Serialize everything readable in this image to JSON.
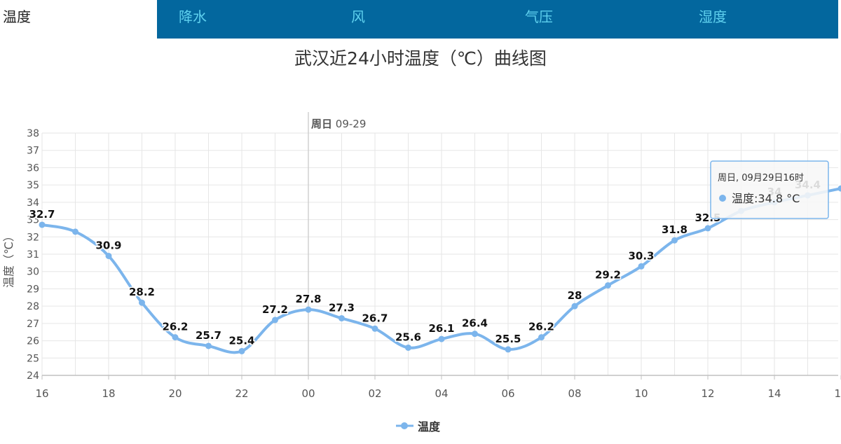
{
  "tabs": [
    {
      "label": "温度",
      "active": true
    },
    {
      "label": "降水",
      "active": false
    },
    {
      "label": "风",
      "active": false
    },
    {
      "label": "气压",
      "active": false
    },
    {
      "label": "湿度",
      "active": false
    }
  ],
  "colors": {
    "tab_bg": "#03679e",
    "tab_text": "#5fd0ee",
    "series": "#7cb5ec",
    "grid": "#e6e6e6"
  },
  "chart_data": {
    "type": "line",
    "title": "武汉近24小时温度（℃）曲线图",
    "ylabel": "温度（℃）",
    "ylim": [
      24,
      38
    ],
    "yticks": [
      "24",
      "25",
      "26",
      "27",
      "28",
      "29",
      "30",
      "31",
      "32",
      "33",
      "34",
      "35",
      "36",
      "37",
      "38"
    ],
    "x": [
      "16",
      "17",
      "18",
      "19",
      "20",
      "21",
      "22",
      "23",
      "00",
      "01",
      "02",
      "03",
      "04",
      "05",
      "06",
      "07",
      "08",
      "09",
      "10",
      "11",
      "12",
      "13",
      "14",
      "15",
      "16"
    ],
    "xtick_labels": [
      "16",
      "18",
      "20",
      "22",
      "00",
      "02",
      "04",
      "06",
      "08",
      "10",
      "12",
      "14",
      "16"
    ],
    "grid": true,
    "day_marker": {
      "at": "00",
      "weekday": "周日",
      "date": "09-29"
    },
    "legend_position": "bottom-center",
    "series": [
      {
        "name": "温度",
        "values": [
          32.7,
          32.3,
          30.9,
          28.2,
          26.2,
          25.7,
          25.4,
          27.2,
          27.8,
          27.3,
          26.7,
          25.6,
          26.1,
          26.4,
          25.5,
          26.2,
          28,
          29.2,
          30.3,
          31.8,
          32.5,
          33.5,
          34,
          34.4,
          34.8
        ],
        "data_labels": [
          "32.7",
          "",
          "30.9",
          "28.2",
          "26.2",
          "25.7",
          "25.4",
          "27.2",
          "27.8",
          "27.3",
          "26.7",
          "25.6",
          "26.1",
          "26.4",
          "25.5",
          "26.2",
          "28",
          "29.2",
          "30.3",
          "31.8",
          "32.5",
          "",
          "34",
          "34.4",
          ""
        ]
      }
    ],
    "tooltip": {
      "header": "周日, 09月29日16时",
      "series": "温度",
      "value": "34.8",
      "unit": "°C"
    }
  }
}
